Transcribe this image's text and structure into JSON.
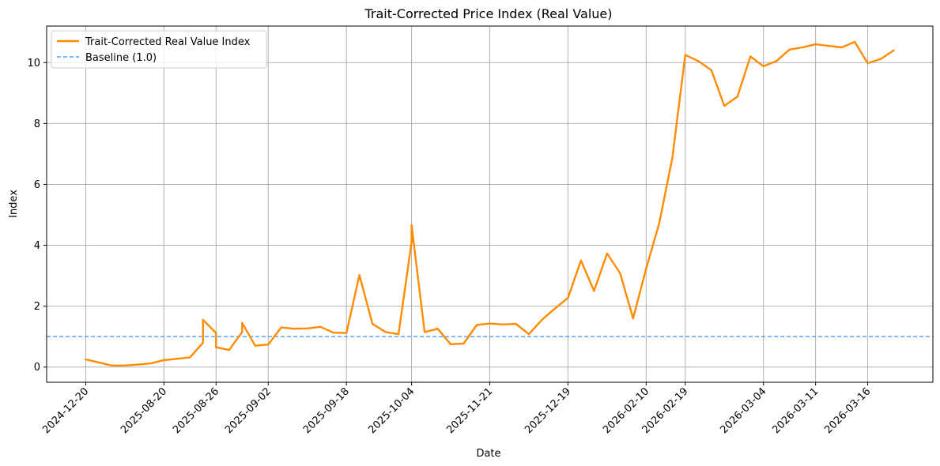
{
  "chart_data": {
    "type": "line",
    "title": "Trait-Corrected Price Index (Real Value)",
    "xlabel": "Date",
    "ylabel": "Index",
    "ylim": [
      -0.5,
      11.2
    ],
    "yticks": [
      0,
      2,
      4,
      6,
      8,
      10
    ],
    "xlim": [
      -3,
      65
    ],
    "xticks": [
      {
        "pos": 0,
        "label": "2024-12-20"
      },
      {
        "pos": 6,
        "label": "2025-08-20"
      },
      {
        "pos": 10,
        "label": "2025-08-26"
      },
      {
        "pos": 14,
        "label": "2025-09-02"
      },
      {
        "pos": 20,
        "label": "2025-09-18"
      },
      {
        "pos": 25,
        "label": "2025-10-04"
      },
      {
        "pos": 31,
        "label": "2025-11-21"
      },
      {
        "pos": 37,
        "label": "2025-12-19"
      },
      {
        "pos": 43,
        "label": "2026-02-10"
      },
      {
        "pos": 46,
        "label": "2026-02-19"
      },
      {
        "pos": 52,
        "label": "2026-03-04"
      },
      {
        "pos": 56,
        "label": "2026-03-11"
      },
      {
        "pos": 60,
        "label": "2026-03-16"
      }
    ],
    "grid": true,
    "legend_position": "top-left",
    "series": [
      {
        "name": "Trait-Corrected Real Value Index",
        "color": "#ff8c00",
        "style": "solid",
        "x": [
          0,
          1,
          2,
          3,
          4,
          5,
          6,
          7,
          8,
          9,
          9,
          10,
          10,
          11,
          12,
          12,
          13,
          14,
          15,
          16,
          17,
          18,
          19,
          20,
          21,
          22,
          23,
          24,
          25,
          25,
          26,
          27,
          28,
          29,
          30,
          31,
          32,
          33,
          34,
          35,
          36,
          37,
          38,
          39,
          40,
          41,
          42,
          43,
          44,
          45,
          46,
          47,
          48,
          49,
          50,
          51,
          52,
          53,
          54,
          55,
          56,
          57,
          58,
          59,
          60,
          61,
          62
        ],
        "values": [
          0.25,
          0.15,
          0.05,
          0.05,
          0.08,
          0.12,
          0.23,
          0.27,
          0.32,
          0.8,
          1.55,
          1.12,
          0.65,
          0.56,
          1.15,
          1.45,
          0.7,
          0.74,
          1.3,
          1.26,
          1.27,
          1.32,
          1.13,
          1.12,
          3.02,
          1.42,
          1.15,
          1.08,
          4.1,
          4.66,
          1.15,
          1.26,
          0.75,
          0.77,
          1.38,
          1.43,
          1.4,
          1.42,
          1.08,
          1.55,
          1.92,
          2.27,
          3.5,
          2.5,
          3.73,
          3.08,
          1.6,
          3.23,
          4.72,
          6.85,
          10.25,
          10.05,
          9.75,
          8.58,
          8.88,
          10.2,
          9.88,
          10.05,
          10.43,
          10.5,
          10.6,
          10.55,
          10.5,
          10.68,
          9.98,
          10.12,
          10.4
        ]
      },
      {
        "name": "Baseline (1.0)",
        "color": "#1f8fff",
        "style": "dashed",
        "x": [
          -3,
          65
        ],
        "values": [
          1.0,
          1.0
        ]
      }
    ]
  }
}
